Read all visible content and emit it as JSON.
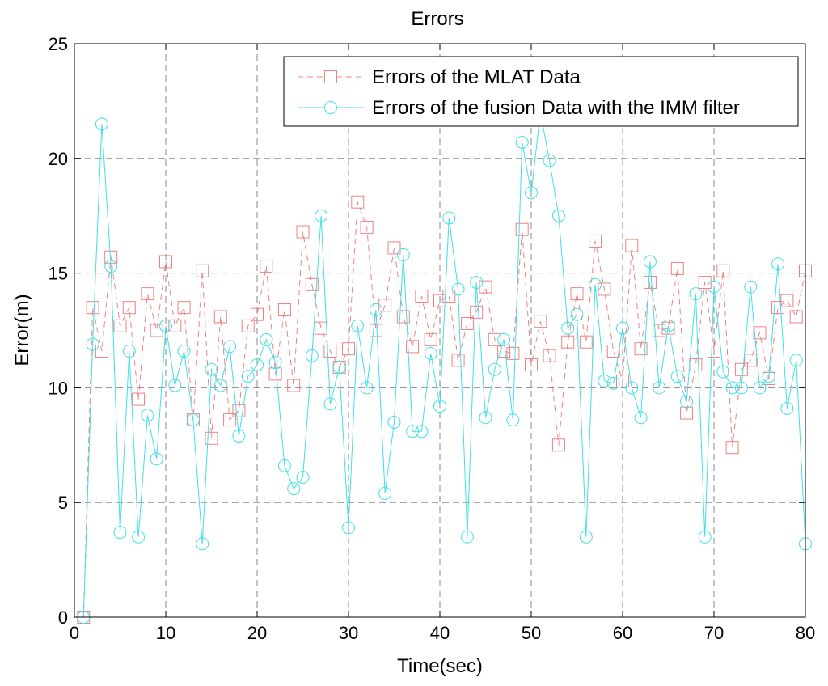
{
  "chart_data": {
    "type": "line",
    "title": "Errors",
    "xlabel": "Time(sec)",
    "ylabel": "Error(m)",
    "xlim": [
      0,
      80
    ],
    "ylim": [
      0,
      25
    ],
    "xticks": [
      0,
      10,
      20,
      30,
      40,
      50,
      60,
      70,
      80
    ],
    "yticks": [
      0,
      5,
      10,
      15,
      20,
      25
    ],
    "grid": true,
    "legend_position": "top-right",
    "series": [
      {
        "name": "Errors of the MLAT Data",
        "color": "#f08080",
        "marker": "square",
        "line_style": "dashed",
        "x": [
          1,
          2,
          3,
          4,
          5,
          6,
          7,
          8,
          9,
          10,
          11,
          12,
          13,
          14,
          15,
          16,
          17,
          18,
          19,
          20,
          21,
          22,
          23,
          24,
          25,
          26,
          27,
          28,
          29,
          30,
          31,
          32,
          33,
          34,
          35,
          36,
          37,
          38,
          39,
          40,
          41,
          42,
          43,
          44,
          45,
          46,
          47,
          48,
          49,
          50,
          51,
          52,
          53,
          54,
          55,
          56,
          57,
          58,
          59,
          60,
          61,
          62,
          63,
          64,
          65,
          66,
          67,
          68,
          69,
          70,
          71,
          72,
          73,
          74,
          75,
          76,
          77,
          78,
          79,
          80
        ],
        "values": [
          0,
          13.5,
          11.6,
          15.7,
          12.7,
          13.5,
          9.5,
          14.1,
          12.5,
          15.5,
          12.7,
          13.5,
          8.6,
          15.1,
          7.8,
          13.1,
          8.6,
          9.0,
          12.7,
          13.2,
          15.3,
          10.6,
          13.4,
          10.1,
          16.8,
          14.5,
          12.6,
          11.6,
          10.9,
          11.7,
          18.1,
          17.0,
          12.5,
          13.6,
          16.1,
          13.1,
          11.8,
          14.0,
          12.1,
          13.8,
          14.0,
          11.2,
          12.8,
          13.3,
          14.4,
          12.1,
          11.6,
          11.5,
          16.9,
          11.0,
          12.9,
          11.4,
          7.5,
          12.0,
          14.1,
          12.0,
          16.4,
          14.3,
          11.6,
          10.3,
          16.2,
          11.7,
          14.6,
          12.5,
          12.6,
          15.2,
          8.9,
          11.0,
          14.6,
          11.6,
          15.1,
          7.4,
          10.8,
          11.2,
          12.4,
          10.4,
          13.5,
          13.8,
          13.1,
          15.1
        ]
      },
      {
        "name": "Errors of the fusion Data with the IMM filter",
        "color": "#40e0e8",
        "marker": "circle",
        "line_style": "solid",
        "x": [
          1,
          2,
          3,
          4,
          5,
          6,
          7,
          8,
          9,
          10,
          11,
          12,
          13,
          14,
          15,
          16,
          17,
          18,
          19,
          20,
          21,
          22,
          23,
          24,
          25,
          26,
          27,
          28,
          29,
          30,
          31,
          32,
          33,
          34,
          35,
          36,
          37,
          38,
          39,
          40,
          41,
          42,
          43,
          44,
          45,
          46,
          47,
          48,
          49,
          50,
          51,
          52,
          53,
          54,
          55,
          56,
          57,
          58,
          59,
          60,
          61,
          62,
          63,
          64,
          65,
          66,
          67,
          68,
          69,
          70,
          71,
          72,
          73,
          74,
          75,
          76,
          77,
          78,
          79,
          80
        ],
        "values": [
          0,
          11.9,
          21.5,
          15.3,
          3.7,
          11.6,
          3.5,
          8.8,
          6.9,
          12.7,
          10.1,
          11.6,
          8.6,
          3.2,
          10.8,
          10.1,
          11.8,
          7.9,
          10.5,
          11.0,
          12.1,
          11.1,
          6.6,
          5.6,
          6.1,
          11.4,
          17.5,
          9.3,
          10.9,
          3.9,
          12.7,
          10.0,
          13.4,
          5.4,
          8.5,
          15.8,
          8.1,
          8.1,
          11.5,
          9.2,
          17.4,
          14.3,
          3.5,
          14.6,
          8.7,
          10.8,
          12.1,
          8.6,
          20.7,
          18.5,
          22.0,
          19.9,
          17.5,
          12.6,
          13.2,
          3.5,
          14.5,
          10.3,
          10.2,
          12.6,
          10.0,
          8.7,
          15.5,
          10.0,
          12.7,
          10.5,
          9.4,
          14.1,
          3.5,
          14.4,
          10.7,
          10.0,
          10.0,
          14.4,
          10.0,
          10.5,
          15.4,
          9.1,
          11.2,
          3.2
        ]
      }
    ]
  }
}
